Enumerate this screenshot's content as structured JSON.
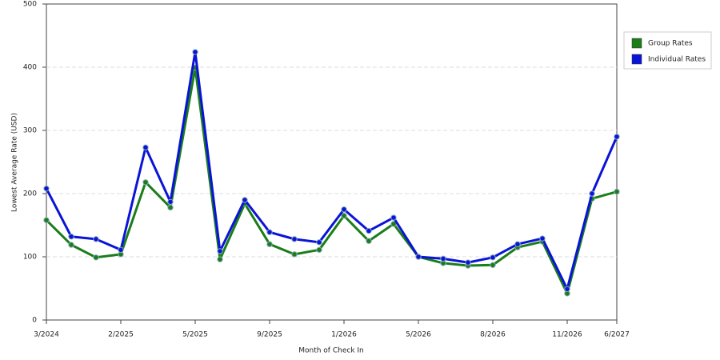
{
  "chart_data": {
    "type": "line",
    "x_label": "Month of Check In",
    "y_label": "Lowest Average Rate (USD)",
    "categories": [
      "3/2024",
      null,
      null,
      "2/2025",
      null,
      null,
      "5/2025",
      null,
      null,
      "9/2025",
      null,
      null,
      "1/2026",
      null,
      null,
      "5/2026",
      null,
      null,
      "8/2026",
      null,
      null,
      "11/2026",
      null,
      "6/2027"
    ],
    "series": [
      {
        "name": "Group Rates",
        "color": "#1a7d1a",
        "values": [
          158,
          119,
          99,
          104,
          218,
          178,
          399,
          96,
          184,
          120,
          104,
          111,
          165,
          125,
          152,
          100,
          90,
          86,
          87,
          115,
          124,
          42,
          192,
          203
        ]
      },
      {
        "name": "Individual Rates",
        "color": "#0a14d6",
        "values": [
          208,
          132,
          128,
          111,
          273,
          187,
          424,
          109,
          190,
          139,
          128,
          123,
          175,
          141,
          162,
          100,
          97,
          91,
          99,
          120,
          129,
          49,
          200,
          290
        ]
      }
    ],
    "ylim": [
      0,
      500
    ],
    "yticks": [
      0,
      100,
      200,
      300,
      400,
      500
    ],
    "grid": true,
    "legend": "right"
  }
}
